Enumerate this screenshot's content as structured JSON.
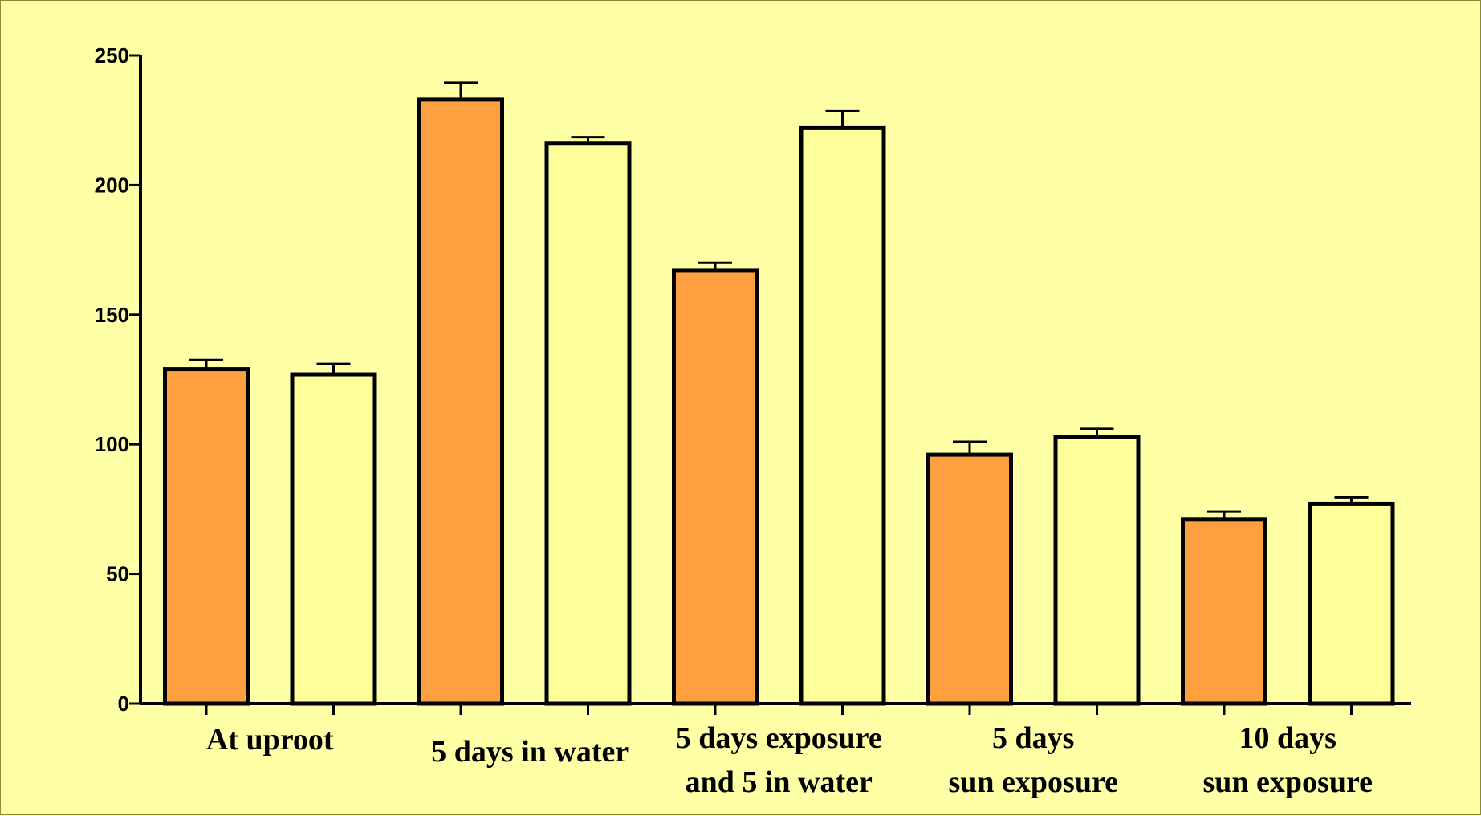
{
  "chart_data": {
    "type": "bar",
    "title": "",
    "xlabel": "",
    "ylabel": "",
    "ylim": [
      0,
      250
    ],
    "yticks": [
      0,
      50,
      100,
      150,
      200,
      250
    ],
    "grid": false,
    "legend": "none",
    "categories": [
      [
        "At uproot"
      ],
      [
        "5 days in water"
      ],
      [
        "5 days exposure",
        "and 5 in water"
      ],
      [
        "5 days",
        "sun exposure"
      ],
      [
        "10 days",
        "sun exposure"
      ]
    ],
    "series": [
      {
        "color": "#ffa040",
        "values": [
          129,
          233,
          167,
          96,
          71
        ],
        "errors": [
          3.5,
          6.5,
          3,
          5,
          3
        ]
      },
      {
        "color": "#ffff99",
        "values": [
          127,
          216,
          222,
          103,
          77
        ],
        "errors": [
          4,
          2.5,
          6.5,
          3,
          2.5
        ]
      }
    ]
  }
}
